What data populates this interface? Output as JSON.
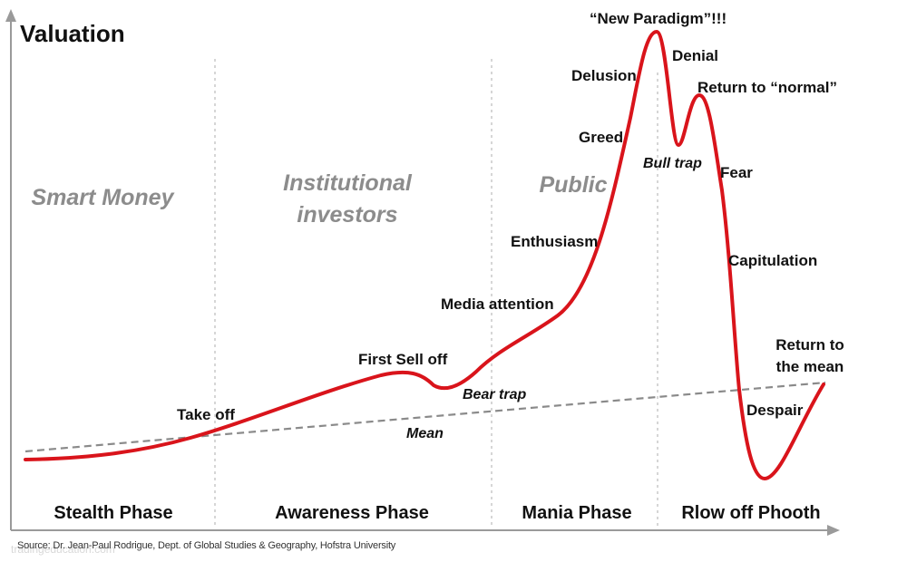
{
  "diagram": {
    "y_axis_title": "Valuation",
    "source": "Source: Dr. Jean-Paul Rodrigue, Dept. of Global Studies & Geography, Hofstra University",
    "watermark": "tradingeducation.com",
    "groups": {
      "smart_money": "Smart Money",
      "institutional_1": "Institutional",
      "institutional_2": "investors",
      "public": "Public"
    },
    "phases": {
      "stealth": "Stealth Phase",
      "awareness": "Awareness Phase",
      "mania": "Mania Phase",
      "blowoff": "Rlow off Phooth"
    },
    "labels": {
      "take_off": "Take off",
      "first_sell_off": "First Sell off",
      "bear_trap": "Bear trap",
      "mean": "Mean",
      "media_attention": "Media attention",
      "enthusiasm": "Enthusiasm",
      "greed": "Greed",
      "delusion": "Delusion",
      "new_paradigm": "“New Paradigm”!!!",
      "denial": "Denial",
      "bull_trap": "Bull trap",
      "return_to_normal": "Return to “normal”",
      "fear": "Fear",
      "capitulation": "Capitulation",
      "despair": "Despair",
      "return_to_the_mean_1": "Return to",
      "return_to_the_mean_2": "the mean"
    },
    "colors": {
      "curve": "#d9141b",
      "mean_line": "#8a8a8a",
      "axis": "#9a9a9a",
      "divider": "#c8c8c8",
      "group_text": "#8c8c8c"
    }
  }
}
